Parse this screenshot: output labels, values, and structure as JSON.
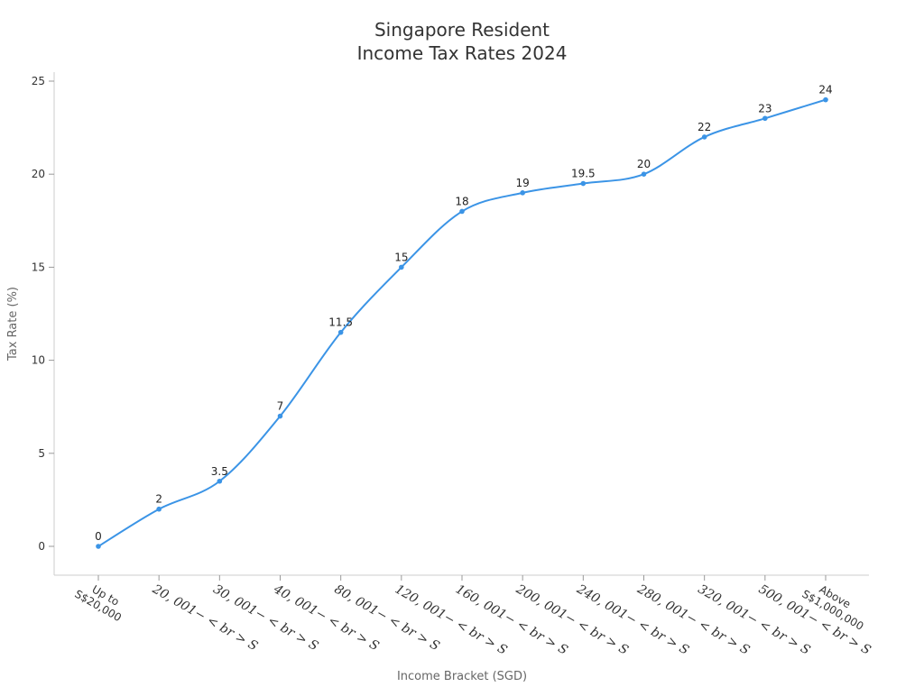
{
  "chart_data": {
    "type": "line",
    "title": [
      "Singapore Resident",
      "Income Tax Rates 2024"
    ],
    "xlabel": "Income Bracket (SGD)",
    "ylabel": "Tax Rate (%)",
    "categories": [
      [
        "Up to",
        "S$20,000"
      ],
      [
        "20, 001− < br > S"
      ],
      [
        "30, 001− < br > S"
      ],
      [
        "40, 001− < br > S"
      ],
      [
        "80, 001− < br > S"
      ],
      [
        "120, 001− < br > S"
      ],
      [
        "160, 001− < br > S"
      ],
      [
        "200, 001− < br > S"
      ],
      [
        "240, 001− < br > S"
      ],
      [
        "280, 001− < br > S"
      ],
      [
        "320, 001− < br > S"
      ],
      [
        "500, 001− < br > S"
      ],
      [
        "Above",
        "S$1,000,000"
      ]
    ],
    "values": [
      0,
      2,
      3.5,
      7,
      11.5,
      15,
      18,
      19,
      19.5,
      20,
      22,
      23,
      24
    ],
    "data_labels": [
      "0",
      "2",
      "3.5",
      "7",
      "11.5",
      "15",
      "18",
      "19",
      "19.5",
      "20",
      "22",
      "23",
      "24"
    ],
    "yticks": [
      0,
      5,
      10,
      15,
      20,
      25
    ],
    "ylim": [
      -1.5,
      25.5
    ],
    "grid": false,
    "line_color": "#3b94e6"
  }
}
